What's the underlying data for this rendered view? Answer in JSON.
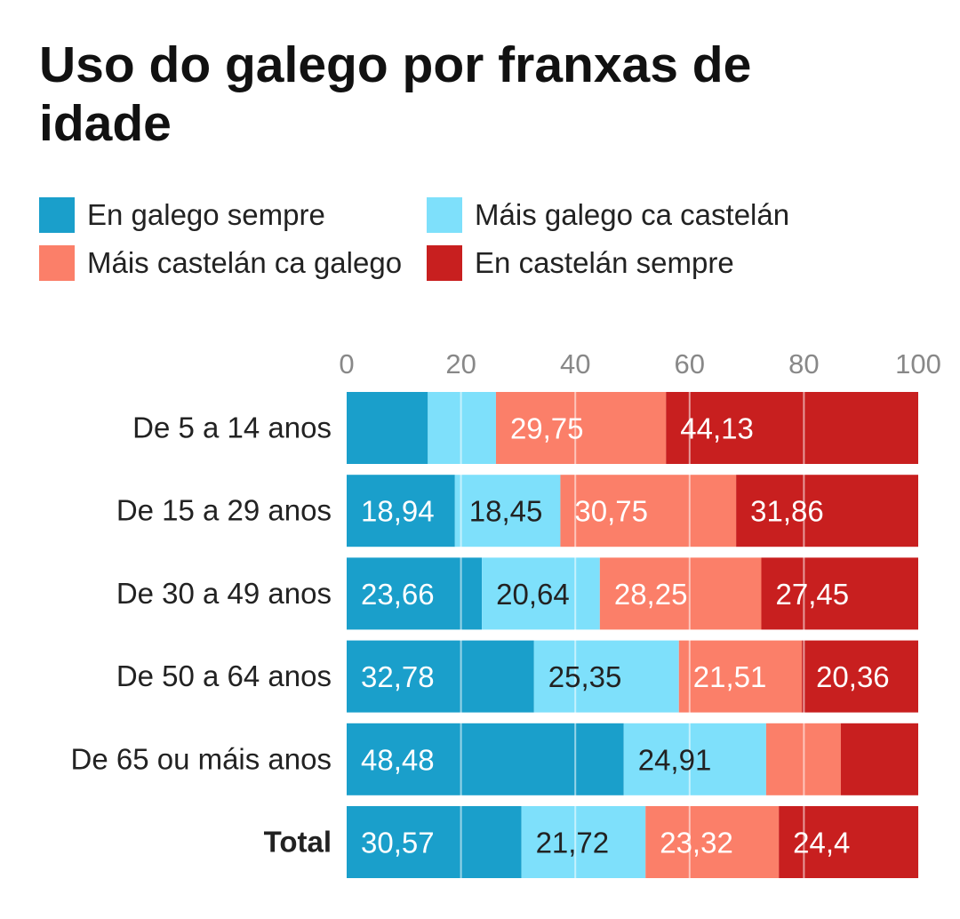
{
  "chart_data": {
    "type": "bar",
    "orientation": "horizontal",
    "stacked": true,
    "title": "Uso do galego por franxas de idade",
    "categories": [
      "De 5 a 14 anos",
      "De 15 a 29 anos",
      "De 30 a 49 anos",
      "De 50 a 64 anos",
      "De 65 ou máis anos",
      "Total"
    ],
    "bold_categories": [
      "Total"
    ],
    "xlim": [
      0,
      100
    ],
    "xticks": [
      0,
      20,
      40,
      60,
      80,
      100
    ],
    "legend_position": "top",
    "series": [
      {
        "name": "En galego sempre",
        "color": "#1a9fcb",
        "values": [
          14.2,
          18.94,
          23.66,
          32.78,
          48.48,
          30.57
        ],
        "labels": [
          "",
          "18,94",
          "23,66",
          "32,78",
          "48,48",
          "30,57"
        ]
      },
      {
        "name": "Máis galego ca castelán",
        "color": "#7ee0fb",
        "values": [
          11.92,
          18.45,
          20.64,
          25.35,
          24.91,
          21.72
        ],
        "labels": [
          "",
          "18,45",
          "20,64",
          "25,35",
          "24,91",
          "21,72"
        ]
      },
      {
        "name": "Máis castelán ca galego",
        "color": "#fb7f69",
        "values": [
          29.75,
          30.75,
          28.25,
          21.51,
          13.06,
          23.32
        ],
        "labels": [
          "29,75",
          "30,75",
          "28,25",
          "21,51",
          "",
          "23,32"
        ]
      },
      {
        "name": "En castelán sempre",
        "color": "#c81f1f",
        "values": [
          44.13,
          31.86,
          27.45,
          20.36,
          13.55,
          24.4
        ],
        "labels": [
          "44,13",
          "31,86",
          "27,45",
          "20,36",
          "",
          "24,4"
        ]
      }
    ]
  }
}
